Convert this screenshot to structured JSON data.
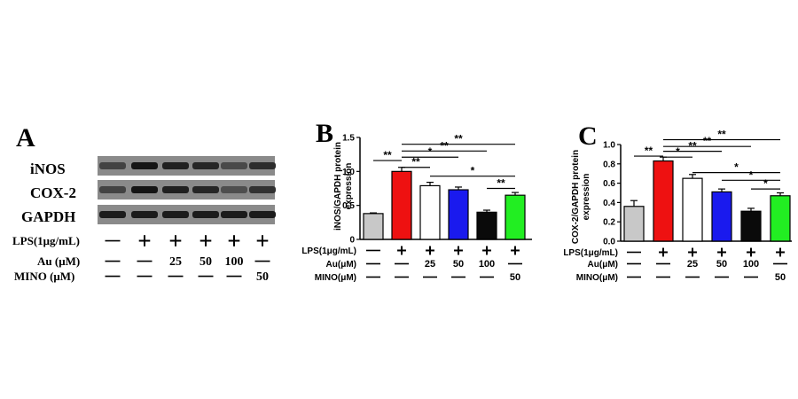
{
  "panel_a": {
    "letter": "A",
    "bands": [
      {
        "name": "iNOS",
        "intensity": [
          0.55,
          0.95,
          0.85,
          0.8,
          0.5,
          0.75
        ]
      },
      {
        "name": "COX-2",
        "intensity": [
          0.55,
          0.95,
          0.85,
          0.8,
          0.45,
          0.7
        ]
      },
      {
        "name": "GAPDH",
        "intensity": [
          0.9,
          0.9,
          0.9,
          0.9,
          0.9,
          0.9
        ]
      }
    ],
    "treatments": [
      {
        "label": "LPS(1μg/mL)",
        "values": [
          "—",
          "+",
          "+",
          "+",
          "+",
          "+"
        ]
      },
      {
        "label": "Au (μM)",
        "values": [
          "—",
          "—",
          "25",
          "50",
          "100",
          "—"
        ]
      },
      {
        "label": "MINO (μM)",
        "values": [
          "—",
          "—",
          "—",
          "—",
          "—",
          "50"
        ]
      }
    ]
  },
  "chart_data": [
    {
      "panel": "B",
      "type": "bar",
      "ylabel": "iNOS/GAPDH protein expression",
      "ylim": [
        0,
        1.5
      ],
      "yticks": [
        "0",
        "0.5",
        "1.0",
        "1.5"
      ],
      "values": [
        0.38,
        1.0,
        0.79,
        0.73,
        0.4,
        0.65
      ],
      "errors": [
        0.01,
        0.06,
        0.05,
        0.04,
        0.03,
        0.04
      ],
      "colors": [
        "#c8c8c8",
        "#ee1111",
        "#ffffff",
        "#1a1aee",
        "#0a0a0a",
        "#22ee22"
      ],
      "significance": [
        {
          "from": 0,
          "to": 1,
          "y": 1.16,
          "label": "**"
        },
        {
          "from": 1,
          "to": 2,
          "y": 1.06,
          "label": "**"
        },
        {
          "from": 1,
          "to": 3,
          "y": 1.21,
          "label": "*"
        },
        {
          "from": 1,
          "to": 4,
          "y": 1.3,
          "label": "**"
        },
        {
          "from": 1,
          "to": 5,
          "y": 1.4,
          "label": "**"
        },
        {
          "from": 2,
          "to": 5,
          "y": 0.93,
          "label": "*"
        },
        {
          "from": 4,
          "to": 5,
          "y": 0.75,
          "label": "**"
        }
      ],
      "treatments": [
        {
          "label": "LPS(1μg/mL)",
          "values": [
            "—",
            "+",
            "+",
            "+",
            "+",
            "+"
          ]
        },
        {
          "label": "Au(μM)",
          "values": [
            "—",
            "—",
            "25",
            "50",
            "100",
            "—"
          ]
        },
        {
          "label": "MINO(μM)",
          "values": [
            "—",
            "—",
            "—",
            "—",
            "—",
            "50"
          ]
        }
      ]
    },
    {
      "panel": "C",
      "type": "bar",
      "ylabel": "COX-2/GAPDH protein expression",
      "ylim": [
        0,
        1.0
      ],
      "yticks": [
        "0.0",
        "0.2",
        "0.4",
        "0.6",
        "0.8",
        "1.0"
      ],
      "values": [
        0.36,
        0.83,
        0.65,
        0.51,
        0.31,
        0.47
      ],
      "errors": [
        0.06,
        0.04,
        0.04,
        0.03,
        0.03,
        0.03
      ],
      "colors": [
        "#c8c8c8",
        "#ee1111",
        "#ffffff",
        "#1a1aee",
        "#0a0a0a",
        "#22ee22"
      ],
      "significance": [
        {
          "from": 0,
          "to": 1,
          "y": 0.88,
          "label": "**"
        },
        {
          "from": 1,
          "to": 2,
          "y": 0.87,
          "label": "*"
        },
        {
          "from": 1,
          "to": 3,
          "y": 0.93,
          "label": "**"
        },
        {
          "from": 1,
          "to": 4,
          "y": 0.98,
          "label": "**"
        },
        {
          "from": 1,
          "to": 5,
          "y": 1.05,
          "label": "**"
        },
        {
          "from": 2,
          "to": 5,
          "y": 0.71,
          "label": "*"
        },
        {
          "from": 3,
          "to": 5,
          "y": 0.63,
          "label": "*"
        },
        {
          "from": 4,
          "to": 5,
          "y": 0.54,
          "label": "*"
        }
      ],
      "treatments": [
        {
          "label": "LPS(1μg/mL)",
          "values": [
            "—",
            "+",
            "+",
            "+",
            "+",
            "+"
          ]
        },
        {
          "label": "Au(μM)",
          "values": [
            "—",
            "—",
            "25",
            "50",
            "100",
            "—"
          ]
        },
        {
          "label": "MINO(μM)",
          "values": [
            "—",
            "—",
            "—",
            "—",
            "—",
            "50"
          ]
        }
      ]
    }
  ]
}
